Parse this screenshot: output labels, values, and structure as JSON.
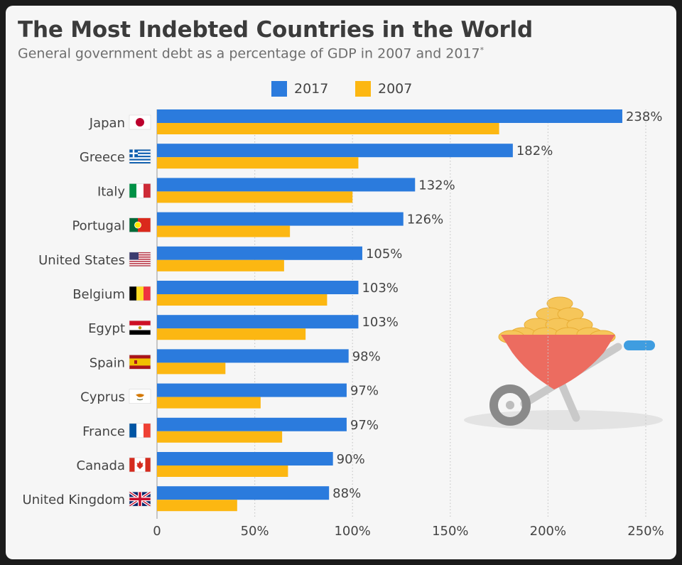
{
  "title": "The Most Indebted Countries in the World",
  "subtitle": "General government debt as a percentage of GDP in 2007 and 2017",
  "subtitle_mark": "*",
  "colors": {
    "series_2017": "#2b7bdd",
    "series_2007": "#fcb712",
    "grid": "#c8c8c8",
    "text": "#444444"
  },
  "chart_data": {
    "type": "bar",
    "orientation": "horizontal",
    "categories": [
      "Japan",
      "Greece",
      "Italy",
      "Portugal",
      "United States",
      "Belgium",
      "Egypt",
      "Spain",
      "Cyprus",
      "France",
      "Canada",
      "United Kingdom"
    ],
    "series": [
      {
        "name": "2017",
        "values": [
          238,
          182,
          132,
          126,
          105,
          103,
          103,
          98,
          97,
          97,
          90,
          88
        ],
        "labels": [
          "238%",
          "182%",
          "132%",
          "126%",
          "105%",
          "103%",
          "103%",
          "98%",
          "97%",
          "97%",
          "90%",
          "88%"
        ]
      },
      {
        "name": "2007",
        "values": [
          175,
          103,
          100,
          68,
          65,
          87,
          76,
          35,
          53,
          64,
          67,
          41
        ]
      }
    ],
    "xlim": [
      0,
      250
    ],
    "x_ticks": [
      0,
      50,
      100,
      150,
      200,
      250
    ],
    "x_tick_labels": [
      "0",
      "50%",
      "100%",
      "150%",
      "200%",
      "250%"
    ],
    "grid": true,
    "legend_position": "top-center",
    "flags": [
      "japan-flag",
      "greece-flag",
      "italy-flag",
      "portugal-flag",
      "usa-flag",
      "belgium-flag",
      "egypt-flag",
      "spain-flag",
      "cyprus-flag",
      "france-flag",
      "canada-flag",
      "uk-flag"
    ],
    "illustration": "wheelbarrow-of-coins"
  }
}
